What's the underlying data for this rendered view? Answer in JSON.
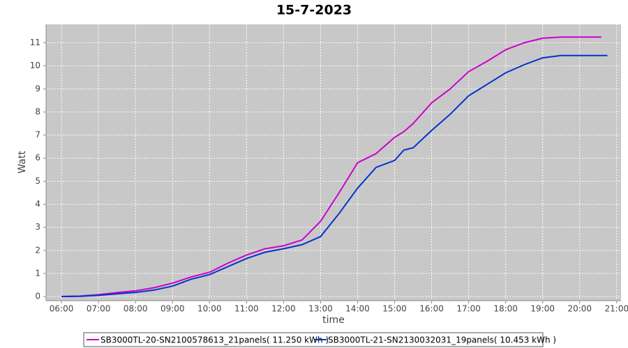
{
  "chart_data": {
    "type": "line",
    "title": "15-7-2023",
    "xlabel": "time",
    "ylabel": "Watt",
    "x": [
      "06:00",
      "06:30",
      "07:00",
      "07:30",
      "08:00",
      "08:30",
      "09:00",
      "09:30",
      "10:00",
      "10:30",
      "11:00",
      "11:30",
      "12:00",
      "12:30",
      "13:00",
      "13:30",
      "14:00",
      "14:30",
      "15:00",
      "15:15",
      "15:30",
      "16:00",
      "16:30",
      "17:00",
      "17:30",
      "18:00",
      "18:30",
      "19:00",
      "19:30",
      "20:00",
      "20:35",
      "20:45"
    ],
    "series": [
      {
        "name": "SB3000TL-20-SN2100578613_21panels( 11.250 kWh )",
        "color": "#cc00cc",
        "values": [
          0,
          0.02,
          0.08,
          0.17,
          0.25,
          0.38,
          0.58,
          0.85,
          1.05,
          1.45,
          1.8,
          2.07,
          2.2,
          2.45,
          3.26,
          4.5,
          5.8,
          6.2,
          6.9,
          7.15,
          7.5,
          8.4,
          9.0,
          9.75,
          10.2,
          10.7,
          11.0,
          11.2,
          11.25,
          11.25,
          11.25,
          null
        ]
      },
      {
        "name": "SB3000TL-21-SN2130032031_19panels( 10.453 kWh )",
        "color": "#0033cc",
        "values": [
          0,
          0.01,
          0.05,
          0.12,
          0.18,
          0.28,
          0.45,
          0.75,
          0.95,
          1.3,
          1.65,
          1.92,
          2.07,
          2.25,
          2.6,
          3.6,
          4.7,
          5.6,
          5.9,
          6.35,
          6.45,
          7.2,
          7.9,
          8.7,
          9.2,
          9.7,
          10.05,
          10.35,
          10.45,
          10.45,
          10.45,
          10.45
        ]
      }
    ],
    "xlim": [
      "05:35",
      "21:07"
    ],
    "xticks": [
      "06:00",
      "07:00",
      "08:00",
      "09:00",
      "10:00",
      "11:00",
      "12:00",
      "13:00",
      "14:00",
      "15:00",
      "16:00",
      "17:00",
      "18:00",
      "19:00",
      "20:00",
      "21:00"
    ],
    "ylim": [
      -0.18,
      11.8
    ],
    "yticks": [
      0,
      1,
      2,
      3,
      4,
      5,
      6,
      7,
      8,
      9,
      10,
      11
    ],
    "grid": true,
    "legend": "bottom"
  }
}
